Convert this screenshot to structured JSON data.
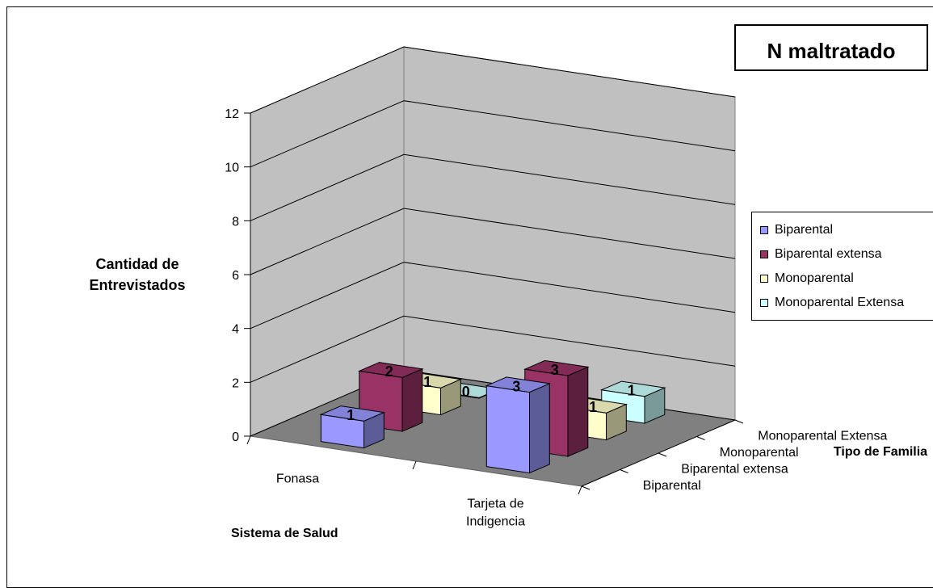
{
  "chart_data": {
    "type": "bar",
    "title": "N maltratado",
    "ylabel": "Cantidad de Entrevistados",
    "xlabel": "Sistema de Salud",
    "zlabel": "Tipo de Familia",
    "ylim": [
      0,
      12
    ],
    "yticks": [
      "0",
      "2",
      "4",
      "6",
      "8",
      "10",
      "12"
    ],
    "categories": [
      "Fonasa",
      "Tarjeta de Indigencia"
    ],
    "series": [
      {
        "name": "Biparental",
        "values": [
          1,
          3
        ],
        "labels": [
          "1",
          "3"
        ],
        "color": "#9999ff"
      },
      {
        "name": "Biparental extensa",
        "values": [
          2,
          3
        ],
        "labels": [
          "2",
          "3"
        ],
        "color": "#993366"
      },
      {
        "name": "Monoparental",
        "values": [
          1,
          1
        ],
        "labels": [
          "1",
          "1"
        ],
        "color": "#ffffcc"
      },
      {
        "name": "Monoparental Extensa",
        "values": [
          0,
          1
        ],
        "labels": [
          "0",
          "1"
        ],
        "color": "#ccffff"
      }
    ],
    "depth_labels": [
      "Biparental",
      "Biparental extensa",
      "Monoparental",
      "Monoparental Extensa"
    ],
    "grid": true,
    "legend": "right"
  }
}
